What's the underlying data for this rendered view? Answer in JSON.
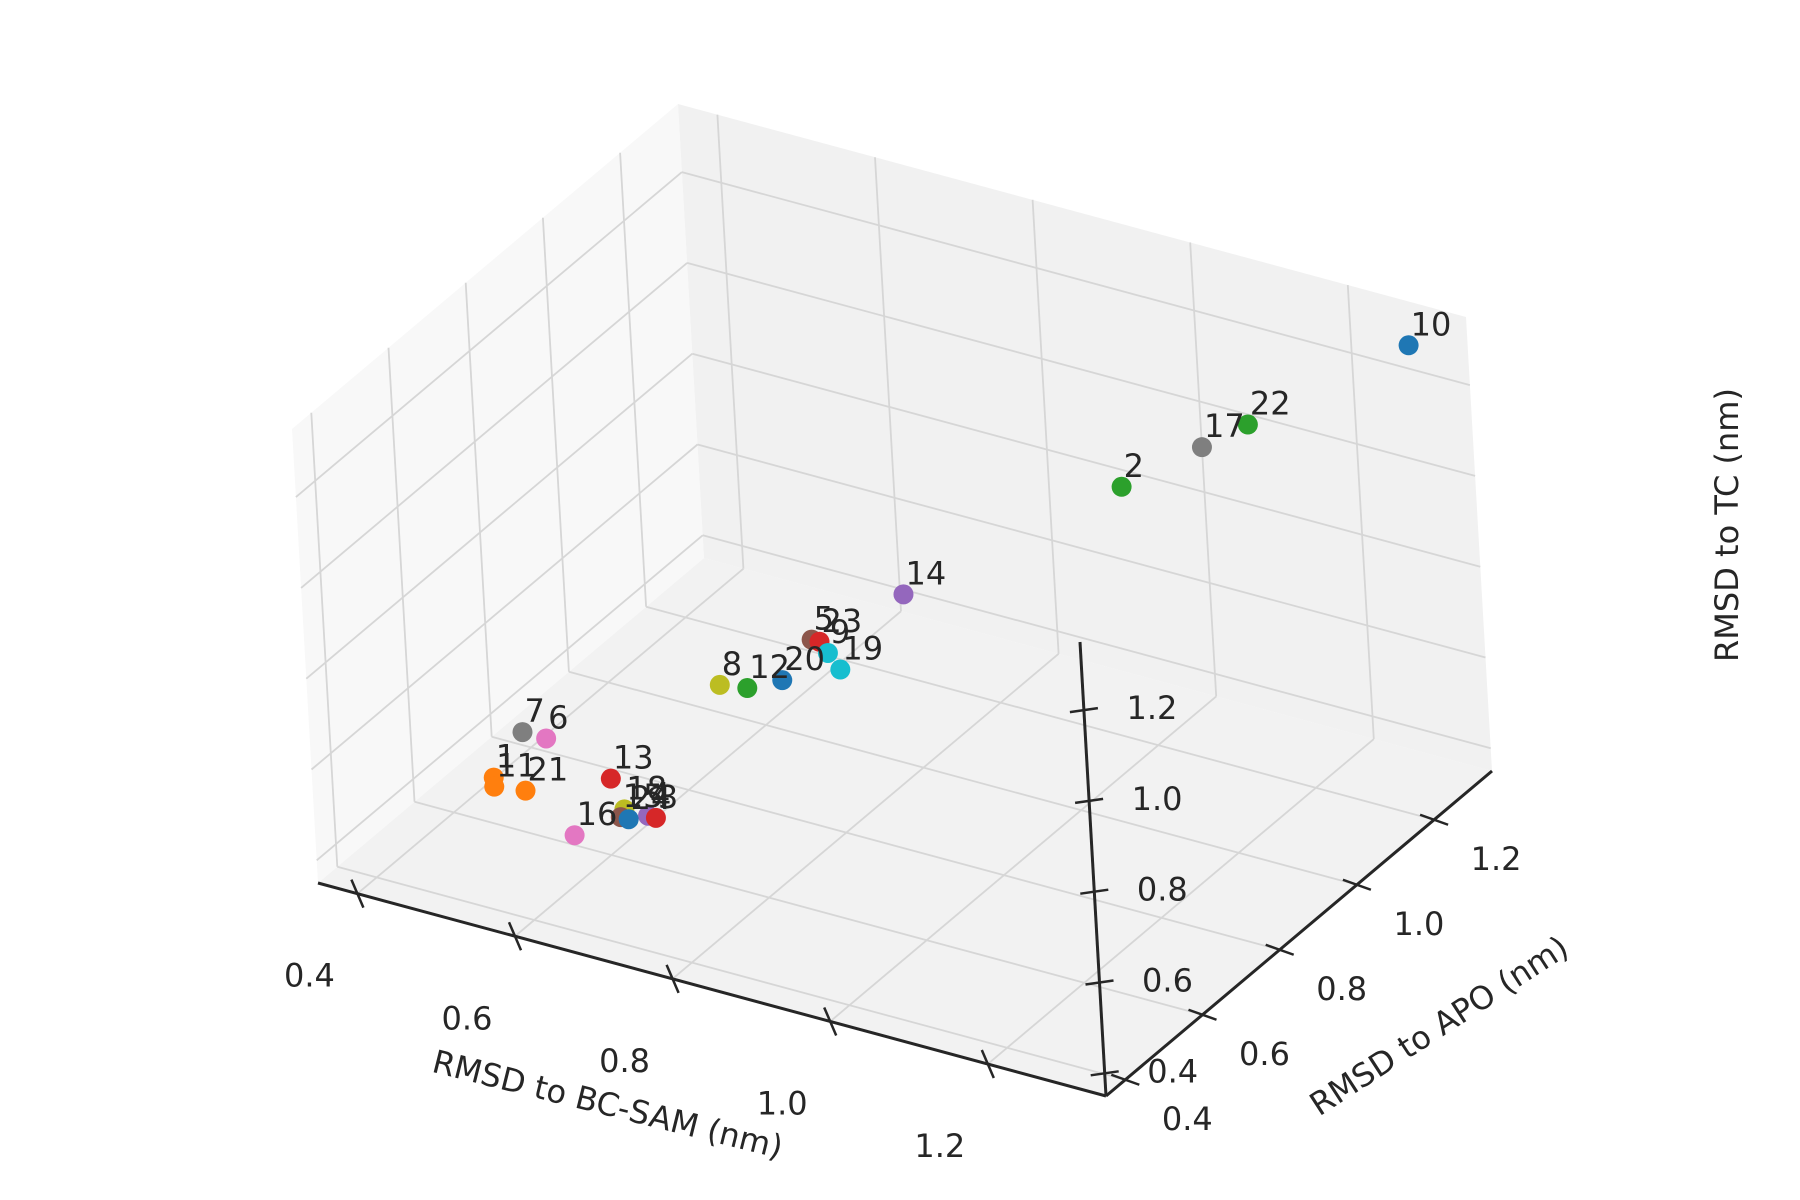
{
  "chart_data": {
    "type": "scatter3d",
    "title": "",
    "xlabel": "RMSD to BC-SAM (nm)",
    "ylabel": "RMSD to APO (nm)",
    "zlabel": "RMSD to TC (nm)",
    "xlim": [
      0.35,
      1.35
    ],
    "ylim": [
      0.35,
      1.35
    ],
    "zlim": [
      0.35,
      1.35
    ],
    "xticks": [
      "0.4",
      "0.6",
      "0.8",
      "1.0",
      "1.2"
    ],
    "yticks": [
      "0.4",
      "0.6",
      "0.8",
      "1.0",
      "1.2"
    ],
    "zticks": [
      "0.4",
      "0.6",
      "0.8",
      "1.0",
      "1.2"
    ],
    "grid": true,
    "points": [
      {
        "label": "1",
        "x": 0.48,
        "y": 0.55,
        "z": 0.5,
        "color": "#ff7f0e"
      },
      {
        "label": "2",
        "x": 1.05,
        "y": 1.05,
        "z": 1.05,
        "color": "#2ca02c"
      },
      {
        "label": "3",
        "x": 0.66,
        "y": 0.6,
        "z": 0.46,
        "color": "#d62728"
      },
      {
        "label": "4",
        "x": 0.65,
        "y": 0.6,
        "z": 0.46,
        "color": "#9467bd"
      },
      {
        "label": "5",
        "x": 0.78,
        "y": 0.78,
        "z": 0.78,
        "color": "#8c564b"
      },
      {
        "label": "6",
        "x": 0.54,
        "y": 0.57,
        "z": 0.6,
        "color": "#e377c2"
      },
      {
        "label": "7",
        "x": 0.51,
        "y": 0.57,
        "z": 0.6,
        "color": "#7f7f7f"
      },
      {
        "label": "8",
        "x": 0.7,
        "y": 0.7,
        "z": 0.7,
        "color": "#bcbd22"
      },
      {
        "label": "9",
        "x": 0.8,
        "y": 0.78,
        "z": 0.76,
        "color": "#17becf"
      },
      {
        "label": "10",
        "x": 1.3,
        "y": 1.3,
        "z": 1.3,
        "color": "#1f77b4"
      },
      {
        "label": "11",
        "x": 0.48,
        "y": 0.55,
        "z": 0.48,
        "color": "#ff7f0e"
      },
      {
        "label": "12",
        "x": 0.73,
        "y": 0.71,
        "z": 0.7,
        "color": "#2ca02c"
      },
      {
        "label": "13",
        "x": 0.61,
        "y": 0.59,
        "z": 0.53,
        "color": "#d62728"
      },
      {
        "label": "14",
        "x": 0.86,
        "y": 0.86,
        "z": 0.86,
        "color": "#9467bd"
      },
      {
        "label": "15",
        "x": 0.62,
        "y": 0.59,
        "z": 0.45,
        "color": "#8c564b"
      },
      {
        "label": "16",
        "x": 0.58,
        "y": 0.55,
        "z": 0.42,
        "color": "#e377c2"
      },
      {
        "label": "17",
        "x": 1.12,
        "y": 1.12,
        "z": 1.12,
        "color": "#7f7f7f"
      },
      {
        "label": "18",
        "x": 0.62,
        "y": 0.6,
        "z": 0.46,
        "color": "#bcbd22"
      },
      {
        "label": "19",
        "x": 0.82,
        "y": 0.77,
        "z": 0.74,
        "color": "#17becf"
      },
      {
        "label": "20",
        "x": 0.76,
        "y": 0.74,
        "z": 0.71,
        "color": "#1f77b4"
      },
      {
        "label": "21",
        "x": 0.52,
        "y": 0.55,
        "z": 0.49,
        "color": "#ff7f0e"
      },
      {
        "label": "22",
        "x": 1.16,
        "y": 1.16,
        "z": 1.16,
        "color": "#2ca02c"
      },
      {
        "label": "23",
        "x": 0.79,
        "y": 0.78,
        "z": 0.78,
        "color": "#d62728"
      },
      {
        "label": "24",
        "x": 0.63,
        "y": 0.59,
        "z": 0.45,
        "color": "#1f77b4"
      }
    ]
  }
}
